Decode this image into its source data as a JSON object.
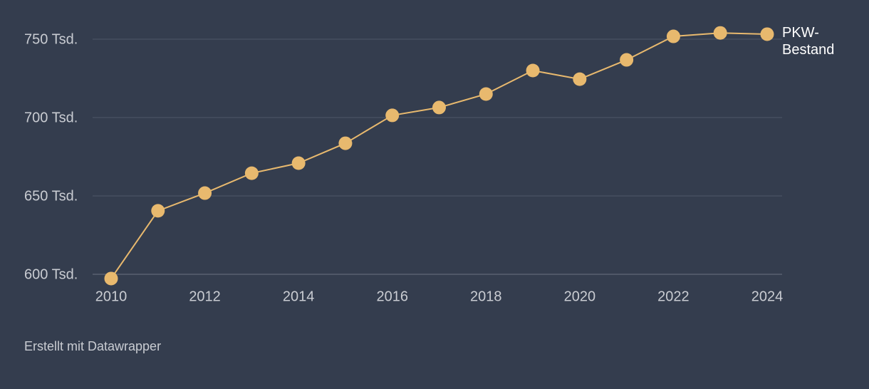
{
  "chart_data": {
    "type": "line",
    "credit": "Erstellt mit Datawrapper",
    "x": [
      2010,
      2011,
      2012,
      2013,
      2014,
      2015,
      2016,
      2017,
      2018,
      2019,
      2020,
      2021,
      2022,
      2023,
      2024
    ],
    "series": [
      {
        "name": "PKW-Bestand",
        "color": "#e8b96e",
        "values": [
          597.3,
          640.5,
          651.8,
          664.5,
          670.9,
          683.6,
          701.4,
          706.4,
          715,
          730,
          724.5,
          736.8,
          751.8,
          754,
          753.2
        ]
      }
    ],
    "xlim": [
      2010,
      2024
    ],
    "xticks": [
      2010,
      2012,
      2014,
      2016,
      2018,
      2020,
      2022,
      2024
    ],
    "ylim": [
      595,
      755
    ],
    "yticks": [
      {
        "value": 600,
        "label": "600 Tsd."
      },
      {
        "value": 650,
        "label": "650 Tsd."
      },
      {
        "value": 700,
        "label": "700 Tsd."
      },
      {
        "value": 750,
        "label": "750 Tsd."
      }
    ],
    "grid": true
  }
}
